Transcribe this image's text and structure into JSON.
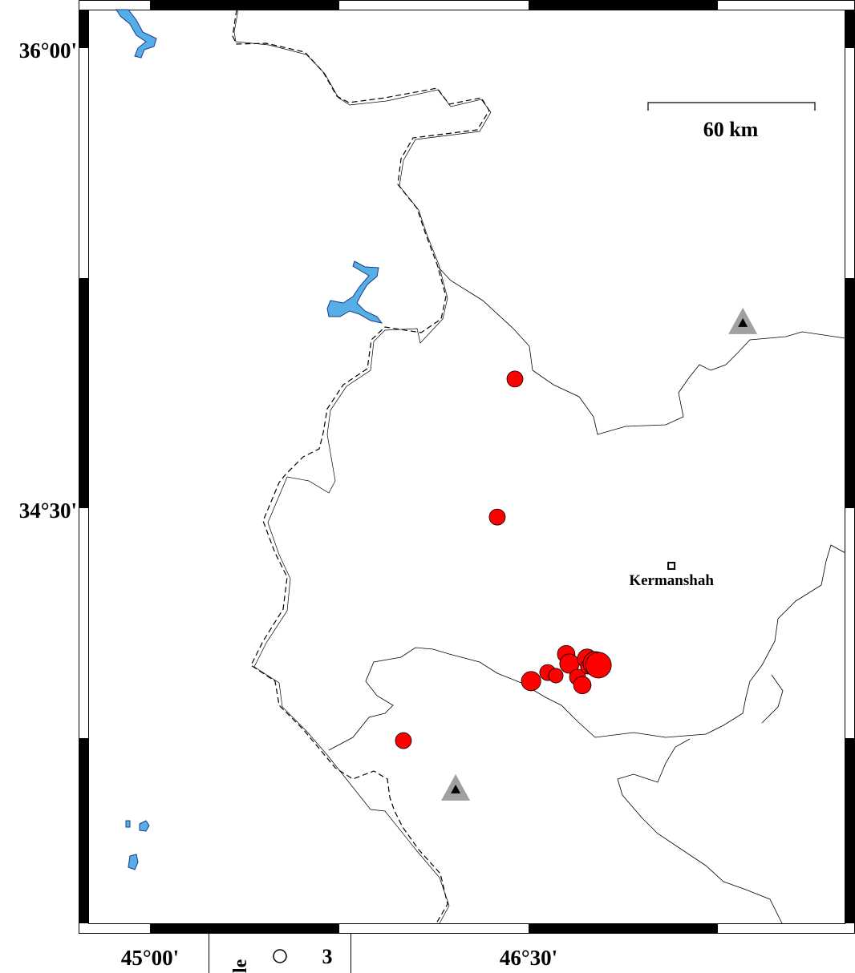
{
  "map": {
    "region": {
      "lon_min": 44.75,
      "lon_max": 47.75,
      "lat_min": 33.75,
      "lat_max": 36.25
    },
    "axis_labels": {
      "lat": [
        {
          "value": 36.0,
          "label": "36°00'"
        },
        {
          "value": 34.5,
          "label": "34°30'"
        }
      ],
      "lon": [
        {
          "value": 45.0,
          "label": "45°00'"
        },
        {
          "value": 46.5,
          "label": "46°30'"
        }
      ]
    },
    "scale_bar": {
      "label": "60 km"
    },
    "city": {
      "name": "Kermanshah",
      "lon": 47.066,
      "lat": 34.312
    },
    "stations": [
      {
        "lon": 47.349,
        "lat": 35.104
      },
      {
        "lon": 46.211,
        "lat": 33.583
      }
    ],
    "events": [
      {
        "lon": 46.446,
        "lat": 34.921,
        "mag": 4.0
      },
      {
        "lon": 46.376,
        "lat": 34.471,
        "mag": 4.0
      },
      {
        "lon": 46.004,
        "lat": 33.742,
        "mag": 4.0
      },
      {
        "lon": 46.51,
        "lat": 33.936,
        "mag": 4.7
      },
      {
        "lon": 46.576,
        "lat": 33.964,
        "mag": 4.0
      },
      {
        "lon": 46.608,
        "lat": 33.954,
        "mag": 3.7
      },
      {
        "lon": 46.649,
        "lat": 34.024,
        "mag": 4.3
      },
      {
        "lon": 46.662,
        "lat": 33.993,
        "mag": 4.7
      },
      {
        "lon": 46.694,
        "lat": 33.949,
        "mag": 4.0
      },
      {
        "lon": 46.713,
        "lat": 33.923,
        "mag": 4.3
      },
      {
        "lon": 46.732,
        "lat": 34.009,
        "mag": 4.7
      },
      {
        "lon": 46.735,
        "lat": 33.983,
        "mag": 3.7
      },
      {
        "lon": 46.764,
        "lat": 33.993,
        "mag": 5.7
      },
      {
        "lon": 46.777,
        "lat": 33.988,
        "mag": 6.0
      }
    ],
    "colors": {
      "event": "#ff0000",
      "water": "#56aee6",
      "station": "#a0a0a0"
    },
    "legend": {
      "title_fragment": "le",
      "value": "3"
    }
  }
}
